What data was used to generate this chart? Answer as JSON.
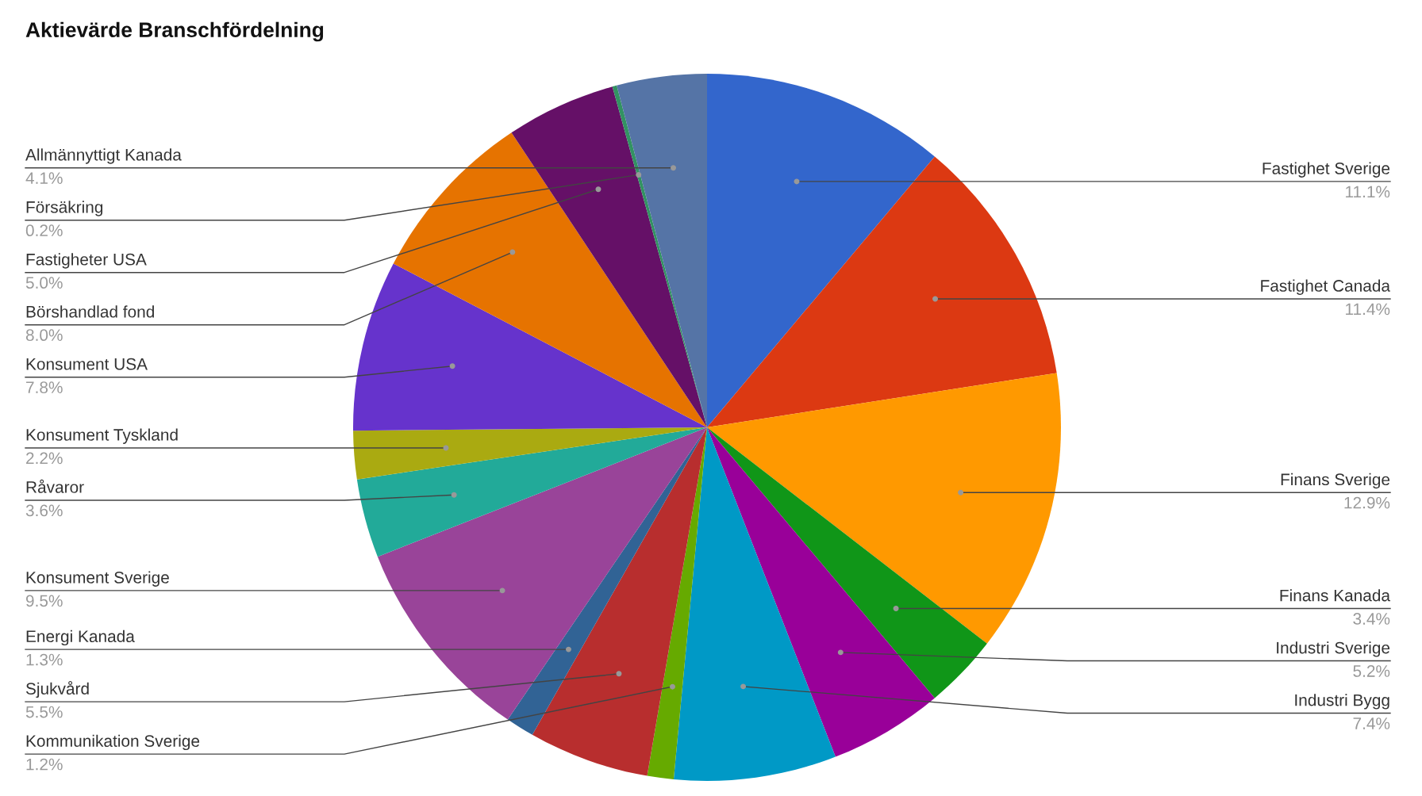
{
  "chart_data": {
    "type": "pie",
    "title": "Aktievärde Branschfördelning",
    "categories": [
      "Fastighet Sverige",
      "Fastighet Canada",
      "Finans Sverige",
      "Finans Kanada",
      "Industri Sverige",
      "Industri Bygg",
      "Kommunikation Sverige",
      "Sjukvård",
      "Energi Kanada",
      "Konsument Sverige",
      "Råvaror",
      "Konsument Tyskland",
      "Konsument USA",
      "Börshandlad fond",
      "Fastigheter USA",
      "Försäkring",
      "Allmännyttigt Kanada"
    ],
    "values": [
      11.1,
      11.4,
      12.9,
      3.4,
      5.2,
      7.4,
      1.2,
      5.5,
      1.3,
      9.5,
      3.6,
      2.2,
      7.8,
      8.0,
      5.0,
      0.2,
      4.1
    ],
    "value_labels": [
      "11.1%",
      "11.4%",
      "12.9%",
      "3.4%",
      "5.2%",
      "7.4%",
      "1.2%",
      "5.5%",
      "1.3%",
      "9.5%",
      "3.6%",
      "2.2%",
      "7.8%",
      "8.0%",
      "5.0%",
      "0.2%",
      "4.1%"
    ],
    "colors": [
      "#3366cc",
      "#dc3912",
      "#ff9900",
      "#109618",
      "#990099",
      "#0099c6",
      "#66aa00",
      "#b82e2e",
      "#316395",
      "#994499",
      "#22aa99",
      "#aaaa11",
      "#6633cc",
      "#e67300",
      "#651067",
      "#329262",
      "#5574a6"
    ]
  }
}
